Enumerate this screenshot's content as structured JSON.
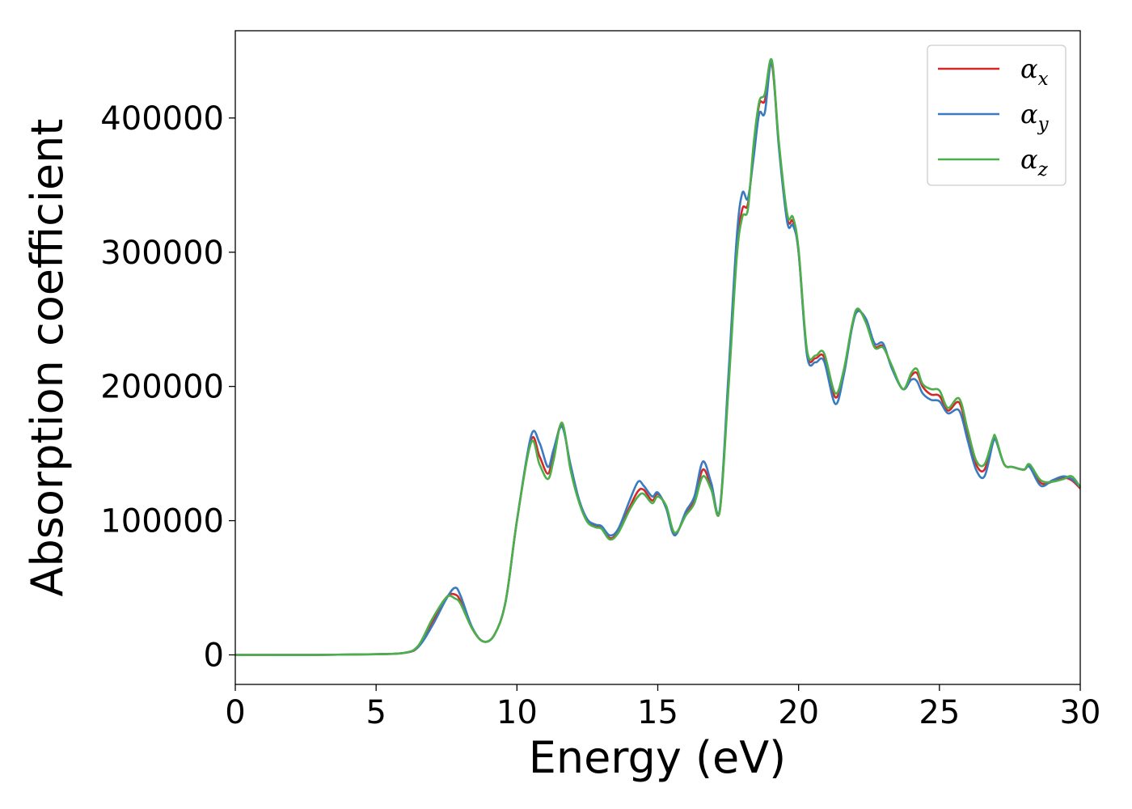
{
  "chart_data": {
    "type": "line",
    "title": "",
    "xlabel": "Energy (eV)",
    "ylabel": "Absorption coefficient",
    "xlim": [
      0,
      30
    ],
    "ylim": [
      -22000,
      465000
    ],
    "xticks": [
      0,
      5,
      10,
      15,
      20,
      25,
      30
    ],
    "yticks": [
      0,
      100000,
      200000,
      300000,
      400000
    ],
    "grid": false,
    "legend_position": "top-right",
    "series": [
      {
        "name": "αx",
        "label_base": "α",
        "label_sub": "x",
        "color": "#d62728",
        "x": [
          0,
          3,
          5,
          6,
          6.5,
          7,
          7.5,
          7.8,
          8,
          8.4,
          8.8,
          9.2,
          9.6,
          10,
          10.5,
          10.8,
          11.1,
          11.3,
          11.6,
          11.9,
          12.2,
          12.5,
          12.8,
          13.0,
          13.3,
          13.6,
          14.0,
          14.3,
          14.5,
          14.8,
          15.0,
          15.3,
          15.6,
          16.0,
          16.3,
          16.6,
          16.9,
          17.2,
          17.5,
          17.8,
          18.0,
          18.2,
          18.4,
          18.6,
          18.8,
          19.05,
          19.3,
          19.6,
          19.8,
          20.0,
          20.3,
          20.6,
          20.9,
          21.3,
          21.6,
          21.9,
          22.1,
          22.4,
          22.7,
          23.0,
          23.3,
          23.7,
          24.0,
          24.2,
          24.4,
          24.7,
          25.0,
          25.3,
          25.7,
          26.0,
          26.3,
          26.6,
          26.9,
          27.0,
          27.3,
          27.6,
          28.0,
          28.2,
          28.6,
          29.0,
          29.4,
          29.7,
          30
        ],
        "y": [
          0,
          0,
          500,
          1500,
          6000,
          25000,
          43000,
          45000,
          40000,
          20000,
          10000,
          15000,
          40000,
          100000,
          160000,
          148000,
          135000,
          150000,
          172000,
          140000,
          115000,
          100000,
          96000,
          95000,
          87000,
          92000,
          110000,
          122000,
          123000,
          115000,
          120000,
          110000,
          90000,
          105000,
          115000,
          138000,
          125000,
          107000,
          200000,
          300000,
          332000,
          336000,
          375000,
          410000,
          413000,
          440000,
          380000,
          325000,
          323000,
          300000,
          225000,
          221000,
          222000,
          192000,
          210000,
          245000,
          257000,
          248000,
          230000,
          230000,
          215000,
          198000,
          208000,
          210000,
          200000,
          194000,
          193000,
          182000,
          188000,
          165000,
          142000,
          138000,
          160000,
          161000,
          142000,
          140000,
          138000,
          141000,
          128000,
          129000,
          132000,
          130000,
          124000
        ]
      },
      {
        "name": "αy",
        "label_base": "α",
        "label_sub": "y",
        "color": "#3a7bbf",
        "x": [
          0,
          3,
          5,
          6,
          6.5,
          7,
          7.5,
          7.8,
          8,
          8.4,
          8.8,
          9.2,
          9.6,
          10,
          10.5,
          10.8,
          11.1,
          11.3,
          11.6,
          11.9,
          12.2,
          12.5,
          12.8,
          13.0,
          13.3,
          13.6,
          14.0,
          14.3,
          14.5,
          14.8,
          15.0,
          15.3,
          15.6,
          16.0,
          16.3,
          16.6,
          16.9,
          17.2,
          17.5,
          17.8,
          18.0,
          18.2,
          18.4,
          18.6,
          18.8,
          19.05,
          19.3,
          19.6,
          19.8,
          20.0,
          20.3,
          20.6,
          20.9,
          21.3,
          21.6,
          21.9,
          22.1,
          22.4,
          22.7,
          23.0,
          23.3,
          23.7,
          24.0,
          24.2,
          24.4,
          24.7,
          25.0,
          25.3,
          25.7,
          26.0,
          26.3,
          26.6,
          26.9,
          27.0,
          27.3,
          27.6,
          28.0,
          28.2,
          28.6,
          29.0,
          29.4,
          29.7,
          30
        ],
        "y": [
          0,
          0,
          500,
          1500,
          6000,
          22000,
          42000,
          50000,
          44000,
          21000,
          10000,
          15000,
          40000,
          100000,
          163000,
          158000,
          140000,
          153000,
          170000,
          142000,
          116000,
          101000,
          97000,
          96000,
          89000,
          94000,
          115000,
          129000,
          126000,
          118000,
          121000,
          109000,
          89000,
          107000,
          118000,
          144000,
          128000,
          108000,
          205000,
          310000,
          344000,
          340000,
          370000,
          403000,
          404000,
          442000,
          378000,
          322000,
          320000,
          300000,
          223000,
          218000,
          219000,
          187000,
          208000,
          244000,
          256000,
          250000,
          232000,
          232000,
          214000,
          198000,
          205000,
          204000,
          195000,
          190000,
          189000,
          180000,
          182000,
          160000,
          138000,
          133000,
          158000,
          160000,
          142000,
          140000,
          138000,
          140000,
          126000,
          130000,
          133000,
          131000,
          125000
        ]
      },
      {
        "name": "αz",
        "label_base": "α",
        "label_sub": "z",
        "color": "#4daf4a",
        "x": [
          0,
          3,
          5,
          6,
          6.5,
          7,
          7.5,
          7.8,
          8,
          8.4,
          8.8,
          9.2,
          9.6,
          10,
          10.5,
          10.8,
          11.1,
          11.3,
          11.6,
          11.9,
          12.2,
          12.5,
          12.8,
          13.0,
          13.3,
          13.6,
          14.0,
          14.3,
          14.5,
          14.8,
          15.0,
          15.3,
          15.6,
          16.0,
          16.3,
          16.6,
          16.9,
          17.2,
          17.5,
          17.8,
          18.0,
          18.2,
          18.4,
          18.6,
          18.8,
          19.05,
          19.3,
          19.6,
          19.8,
          20.0,
          20.3,
          20.6,
          20.9,
          21.3,
          21.6,
          21.9,
          22.1,
          22.4,
          22.7,
          23.0,
          23.3,
          23.7,
          24.0,
          24.2,
          24.4,
          24.7,
          25.0,
          25.3,
          25.7,
          26.0,
          26.3,
          26.6,
          26.9,
          27.0,
          27.3,
          27.6,
          28.0,
          28.2,
          28.6,
          29.0,
          29.4,
          29.7,
          30
        ],
        "y": [
          0,
          0,
          500,
          1500,
          7000,
          27000,
          43000,
          42000,
          38000,
          20000,
          10000,
          15000,
          40000,
          100000,
          158000,
          142000,
          131000,
          145000,
          173000,
          138000,
          114000,
          99000,
          95000,
          94000,
          86000,
          91000,
          108000,
          118000,
          120000,
          113000,
          118000,
          111000,
          91000,
          104000,
          113000,
          133000,
          123000,
          107000,
          195000,
          295000,
          326000,
          332000,
          380000,
          412000,
          418000,
          443000,
          382000,
          328000,
          326000,
          302000,
          227000,
          223000,
          225000,
          195000,
          212000,
          246000,
          258000,
          247000,
          229000,
          229000,
          216000,
          198000,
          210000,
          213000,
          202000,
          198000,
          197000,
          184000,
          191000,
          168000,
          145000,
          142000,
          161000,
          162000,
          142000,
          140000,
          138000,
          142000,
          130000,
          129000,
          131000,
          133000,
          125000
        ]
      }
    ]
  }
}
